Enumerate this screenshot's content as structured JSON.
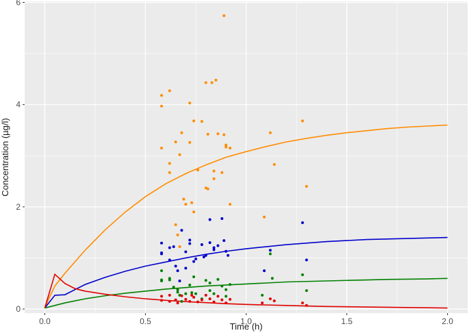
{
  "chart_data": {
    "type": "scatter",
    "xlabel": "Time (h)",
    "ylabel": "Concentration (µg/l)",
    "xlim": [
      -0.1,
      2.1
    ],
    "ylim": [
      -0.08,
      6.02
    ],
    "x_ticks": [
      0.0,
      0.5,
      1.0,
      1.5,
      2.0
    ],
    "x_tick_labels": [
      "0.0",
      "0.5",
      "1.0",
      "1.5",
      "2.0"
    ],
    "y_ticks": [
      0,
      2,
      4,
      6
    ],
    "y_tick_labels": [
      "0",
      "2",
      "4",
      "6"
    ],
    "grid": true,
    "background": "#ebebeb",
    "legend": "none",
    "lines": [
      {
        "color": "#ff8c00",
        "points": [
          [
            0,
            0.02
          ],
          [
            0.02,
            0.2
          ],
          [
            0.05,
            0.45
          ],
          [
            0.1,
            0.7
          ],
          [
            0.2,
            1.15
          ],
          [
            0.3,
            1.55
          ],
          [
            0.4,
            1.9
          ],
          [
            0.5,
            2.2
          ],
          [
            0.6,
            2.45
          ],
          [
            0.7,
            2.65
          ],
          [
            0.8,
            2.82
          ],
          [
            0.9,
            2.97
          ],
          [
            1.0,
            3.08
          ],
          [
            1.1,
            3.18
          ],
          [
            1.2,
            3.27
          ],
          [
            1.3,
            3.34
          ],
          [
            1.4,
            3.4
          ],
          [
            1.5,
            3.45
          ],
          [
            1.6,
            3.49
          ],
          [
            1.7,
            3.53
          ],
          [
            1.8,
            3.56
          ],
          [
            1.9,
            3.58
          ],
          [
            2.0,
            3.6
          ]
        ]
      },
      {
        "color": "#0000cd",
        "points": [
          [
            0,
            0.02
          ],
          [
            0.05,
            0.27
          ],
          [
            0.1,
            0.28
          ],
          [
            0.15,
            0.38
          ],
          [
            0.2,
            0.48
          ],
          [
            0.3,
            0.62
          ],
          [
            0.4,
            0.74
          ],
          [
            0.5,
            0.84
          ],
          [
            0.6,
            0.92
          ],
          [
            0.7,
            1.0
          ],
          [
            0.8,
            1.07
          ],
          [
            0.9,
            1.13
          ],
          [
            1.0,
            1.18
          ],
          [
            1.1,
            1.22
          ],
          [
            1.2,
            1.26
          ],
          [
            1.3,
            1.29
          ],
          [
            1.4,
            1.32
          ],
          [
            1.5,
            1.34
          ],
          [
            1.6,
            1.36
          ],
          [
            1.7,
            1.37
          ],
          [
            1.8,
            1.38
          ],
          [
            1.9,
            1.39
          ],
          [
            2.0,
            1.4
          ]
        ]
      },
      {
        "color": "#008000",
        "points": [
          [
            0,
            0.02
          ],
          [
            0.1,
            0.12
          ],
          [
            0.2,
            0.2
          ],
          [
            0.3,
            0.26
          ],
          [
            0.4,
            0.31
          ],
          [
            0.5,
            0.35
          ],
          [
            0.6,
            0.39
          ],
          [
            0.7,
            0.42
          ],
          [
            0.8,
            0.45
          ],
          [
            0.9,
            0.47
          ],
          [
            1.0,
            0.49
          ],
          [
            1.1,
            0.51
          ],
          [
            1.2,
            0.53
          ],
          [
            1.3,
            0.54
          ],
          [
            1.4,
            0.55
          ],
          [
            1.5,
            0.56
          ],
          [
            1.6,
            0.57
          ],
          [
            1.7,
            0.58
          ],
          [
            1.8,
            0.585
          ],
          [
            1.9,
            0.59
          ],
          [
            2.0,
            0.6
          ]
        ]
      },
      {
        "color": "#e00000",
        "points": [
          [
            0,
            0.02
          ],
          [
            0.05,
            0.68
          ],
          [
            0.1,
            0.5
          ],
          [
            0.15,
            0.4
          ],
          [
            0.2,
            0.35
          ],
          [
            0.3,
            0.29
          ],
          [
            0.4,
            0.24
          ],
          [
            0.5,
            0.2
          ],
          [
            0.6,
            0.17
          ],
          [
            0.7,
            0.145
          ],
          [
            0.8,
            0.125
          ],
          [
            0.9,
            0.105
          ],
          [
            1.0,
            0.09
          ],
          [
            1.2,
            0.07
          ],
          [
            1.4,
            0.05
          ],
          [
            1.6,
            0.04
          ],
          [
            1.8,
            0.03
          ],
          [
            2.0,
            0.02
          ]
        ]
      }
    ],
    "scatter": [
      {
        "color": "#ff8c00",
        "points": [
          [
            0.58,
            4.18
          ],
          [
            0.58,
            3.97
          ],
          [
            0.62,
            4.27
          ],
          [
            0.58,
            3.15
          ],
          [
            0.62,
            2.85
          ],
          [
            0.62,
            2.67
          ],
          [
            0.65,
            3.27
          ],
          [
            0.67,
            3.02
          ],
          [
            0.68,
            3.45
          ],
          [
            0.72,
            4.03
          ],
          [
            0.72,
            3.26
          ],
          [
            0.74,
            3.68
          ],
          [
            0.78,
            3.67
          ],
          [
            0.81,
            3.42
          ],
          [
            0.8,
            4.43
          ],
          [
            0.83,
            4.43
          ],
          [
            0.85,
            4.48
          ],
          [
            0.86,
            3.43
          ],
          [
            0.89,
            3.41
          ],
          [
            0.89,
            5.74
          ],
          [
            0.9,
            3.21
          ],
          [
            0.9,
            3.17
          ],
          [
            0.92,
            3.15
          ],
          [
            0.88,
            2.67
          ],
          [
            0.84,
            2.7
          ],
          [
            0.84,
            2.55
          ],
          [
            0.76,
            2.72
          ],
          [
            0.8,
            2.37
          ],
          [
            0.81,
            2.35
          ],
          [
            0.69,
            2.15
          ],
          [
            0.7,
            2.05
          ],
          [
            0.74,
            1.9
          ],
          [
            0.73,
            2.08
          ],
          [
            0.65,
            1.65
          ],
          [
            0.66,
            1.45
          ],
          [
            0.67,
            1.22
          ],
          [
            0.92,
            2.05
          ],
          [
            1.09,
            1.8
          ],
          [
            1.12,
            3.45
          ],
          [
            1.14,
            2.83
          ],
          [
            1.28,
            3.68
          ],
          [
            1.3,
            2.4
          ]
        ]
      },
      {
        "color": "#0000cd",
        "points": [
          [
            0.58,
            1.29
          ],
          [
            0.58,
            1.1
          ],
          [
            0.58,
            1.08
          ],
          [
            0.62,
            1.2
          ],
          [
            0.62,
            0.96
          ],
          [
            0.64,
            1.22
          ],
          [
            0.65,
            0.84
          ],
          [
            0.66,
            0.75
          ],
          [
            0.67,
            0.55
          ],
          [
            0.68,
            1.54
          ],
          [
            0.7,
            1.12
          ],
          [
            0.72,
            1.35
          ],
          [
            0.72,
            1.28
          ],
          [
            0.74,
            0.93
          ],
          [
            0.75,
            0.98
          ],
          [
            0.78,
            1.26
          ],
          [
            0.8,
            1.05
          ],
          [
            0.82,
            1.3
          ],
          [
            0.82,
            1.75
          ],
          [
            0.84,
            1.2
          ],
          [
            0.84,
            1.16
          ],
          [
            0.86,
            1.24
          ],
          [
            0.88,
            1.77
          ],
          [
            0.89,
            1.34
          ],
          [
            0.9,
            1.13
          ],
          [
            0.91,
            1.05
          ],
          [
            0.7,
            0.8
          ],
          [
            0.79,
            1.02
          ],
          [
            1.09,
            0.75
          ],
          [
            1.12,
            1.15
          ],
          [
            1.28,
            1.69
          ],
          [
            1.3,
            0.96
          ]
        ]
      },
      {
        "color": "#008000",
        "points": [
          [
            0.58,
            0.75
          ],
          [
            0.58,
            0.57
          ],
          [
            0.58,
            0.55
          ],
          [
            0.62,
            0.6
          ],
          [
            0.62,
            0.57
          ],
          [
            0.64,
            0.43
          ],
          [
            0.66,
            0.38
          ],
          [
            0.66,
            0.33
          ],
          [
            0.67,
            0.27
          ],
          [
            0.68,
            0.15
          ],
          [
            0.7,
            0.3
          ],
          [
            0.72,
            0.47
          ],
          [
            0.73,
            0.32
          ],
          [
            0.74,
            0.63
          ],
          [
            0.75,
            0.3
          ],
          [
            0.78,
            0.2
          ],
          [
            0.8,
            0.56
          ],
          [
            0.82,
            0.51
          ],
          [
            0.82,
            0.36
          ],
          [
            0.84,
            0.3
          ],
          [
            0.86,
            0.58
          ],
          [
            0.88,
            0.45
          ],
          [
            0.9,
            0.38
          ],
          [
            0.9,
            0.25
          ],
          [
            1.08,
            0.27
          ],
          [
            1.12,
            1.08
          ],
          [
            1.13,
            0.6
          ],
          [
            1.28,
            0.67
          ],
          [
            1.3,
            0.36
          ],
          [
            0.92,
            0.48
          ]
        ]
      },
      {
        "color": "#e00000",
        "points": [
          [
            0.58,
            0.25
          ],
          [
            0.58,
            0.17
          ],
          [
            0.62,
            0.27
          ],
          [
            0.62,
            0.15
          ],
          [
            0.65,
            0.18
          ],
          [
            0.66,
            0.12
          ],
          [
            0.68,
            0.26
          ],
          [
            0.7,
            0.19
          ],
          [
            0.72,
            0.15
          ],
          [
            0.73,
            0.27
          ],
          [
            0.74,
            0.23
          ],
          [
            0.76,
            0.14
          ],
          [
            0.78,
            0.18
          ],
          [
            0.8,
            0.27
          ],
          [
            0.82,
            0.2
          ],
          [
            0.84,
            0.14
          ],
          [
            0.86,
            0.25
          ],
          [
            0.88,
            0.18
          ],
          [
            0.9,
            0.12
          ],
          [
            0.92,
            0.19
          ],
          [
            1.08,
            0.12
          ],
          [
            1.12,
            0.2
          ],
          [
            1.14,
            0.16
          ],
          [
            1.28,
            0.12
          ],
          [
            1.3,
            0.07
          ]
        ]
      }
    ]
  }
}
